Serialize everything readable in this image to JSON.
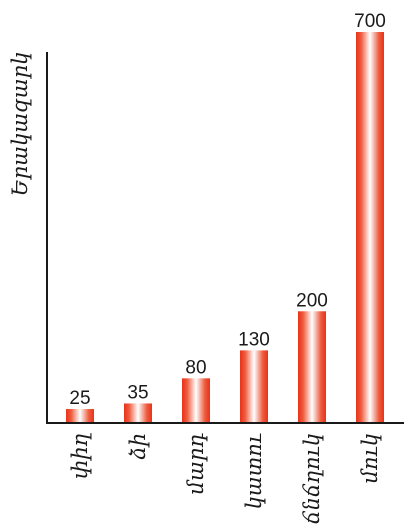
{
  "chart_data": {
    "type": "bar",
    "categories": [
      "փիղ",
      "ձի",
      "մարդ",
      "կատու",
      "ճնճղուկ",
      "մուկ"
    ],
    "values": [
      25,
      35,
      80,
      130,
      200,
      700
    ],
    "value_labels": [
      "25",
      "35",
      "80",
      "130",
      "200",
      "700"
    ],
    "ylabel": "Երակազարկ",
    "ylim": [
      0,
      700
    ],
    "grid": false,
    "legend": "none",
    "colors": {
      "bar_edge": "#e8331a",
      "bar_center": "#ffffff",
      "axis": "#1a1a1a"
    }
  }
}
